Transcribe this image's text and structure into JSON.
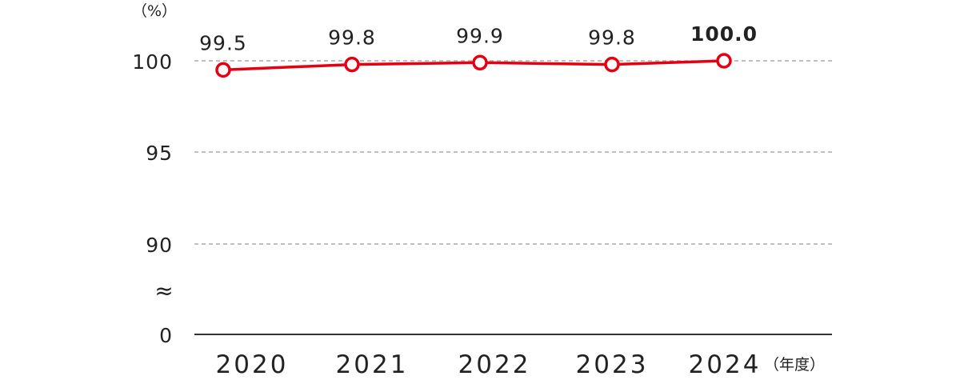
{
  "chart_data": {
    "type": "line",
    "categories": [
      "2020",
      "2021",
      "2022",
      "2023",
      "2024"
    ],
    "series": [
      {
        "values": [
          99.5,
          99.8,
          99.9,
          99.8,
          100.0
        ],
        "color": "#e60012"
      }
    ],
    "data_labels": [
      "99.5",
      "99.8",
      "99.9",
      "99.8",
      "100.0"
    ],
    "highlight_index": 4,
    "yticks": [
      "100",
      "95",
      "90",
      "0"
    ],
    "ylabel": "（%）",
    "xlabel": "（年度）",
    "axis_break_symbol": "≈",
    "grid": true
  }
}
